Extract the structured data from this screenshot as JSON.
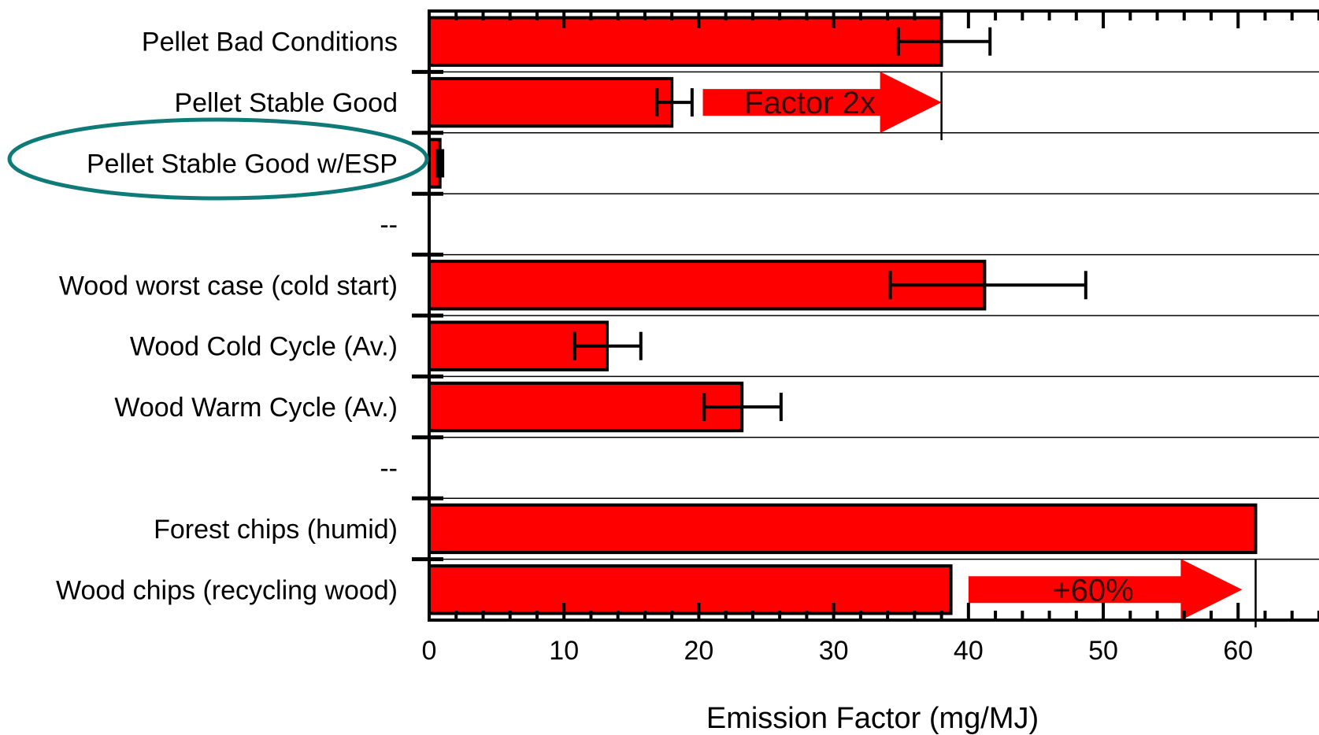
{
  "chart_data": {
    "type": "bar",
    "orientation": "horizontal",
    "categories": [
      "Pellet Bad Conditions",
      "Pellet Stable Good",
      "Pellet Stable Good w/ESP",
      "--",
      "Wood worst case (cold start)",
      "Wood Cold Cycle (Av.)",
      "Wood Warm Cycle (Av.)",
      "--",
      "Forest chips (humid)",
      "Wood chips (recycling wood)"
    ],
    "values": [
      38,
      18,
      0.8,
      null,
      41.2,
      13.2,
      23.2,
      null,
      61.3,
      38.7
    ],
    "error_low": [
      34.8,
      16.9,
      0.6,
      null,
      34.2,
      10.8,
      20.4,
      null,
      null,
      null
    ],
    "error_high": [
      41.6,
      19.5,
      1.0,
      null,
      48.7,
      15.7,
      26.1,
      null,
      null,
      null
    ],
    "xlabel": "Emission Factor (mg/MJ)",
    "xlim": [
      0,
      66
    ],
    "xticks": [
      "0",
      "10",
      "20",
      "30",
      "40",
      "50",
      "60"
    ],
    "grid": "horizontal lines between categories",
    "bar_color": "#ff0000",
    "highlight_color": "#0e7b78",
    "highlighted_category": 2,
    "annotations": [
      {
        "text": "Factor 2x",
        "category_index": 1,
        "from": 20.3,
        "to": 38,
        "ref_line": 38
      },
      {
        "text": "+60%",
        "category_index": 9,
        "from": 40,
        "to": 60.3,
        "ref_line": 61.3
      }
    ]
  }
}
